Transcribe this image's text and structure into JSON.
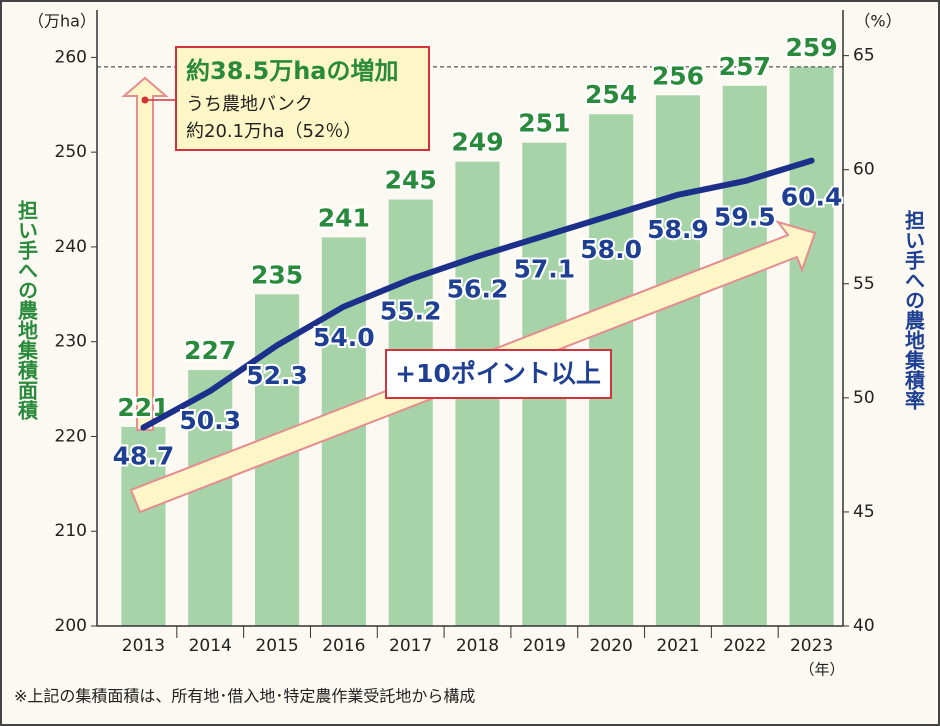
{
  "chart_data": {
    "type": "bar",
    "y_unit": "（万ha）",
    "y2_unit": "（%）",
    "x_unit": "（年）",
    "y_label": "担い手への農地集積面積",
    "y2_label": "担い手への農地集積率",
    "categories": [
      "2013",
      "2014",
      "2015",
      "2016",
      "2017",
      "2018",
      "2019",
      "2020",
      "2021",
      "2022",
      "2023"
    ],
    "series": [
      {
        "type": "bar",
        "color": "#a6d3a8",
        "label_color": "#2a8a3c",
        "values": [
          221,
          227,
          235,
          241,
          245,
          249,
          251,
          254,
          256,
          257,
          259
        ]
      },
      {
        "type": "line",
        "axis": "y2",
        "color": "#1c2f8a",
        "label_color": "#1e3f92",
        "values": [
          48.7,
          50.3,
          52.3,
          54.0,
          55.2,
          56.2,
          57.1,
          58.0,
          58.9,
          59.5,
          60.4
        ],
        "value_labels": [
          "48.7",
          "50.3",
          "52.3",
          "54.0",
          "55.2",
          "56.2",
          "57.1",
          "58.0",
          "58.9",
          "59.5",
          "60.4"
        ]
      }
    ],
    "ylim": [
      200,
      265
    ],
    "yticks": [
      200,
      210,
      220,
      230,
      240,
      250,
      260
    ],
    "y2lim": [
      40,
      67
    ],
    "y2ticks": [
      40,
      45,
      50,
      55,
      60,
      65
    ],
    "annotations": {
      "increase": "約38.5万haの増加",
      "bank_label": "うち農地バンク",
      "bank_value": "約20.1万ha（52％）",
      "points": "+10ポイント以上"
    },
    "footnote": "※上記の集積面積は、所有地･借入地･特定農作業受託地から構成"
  }
}
